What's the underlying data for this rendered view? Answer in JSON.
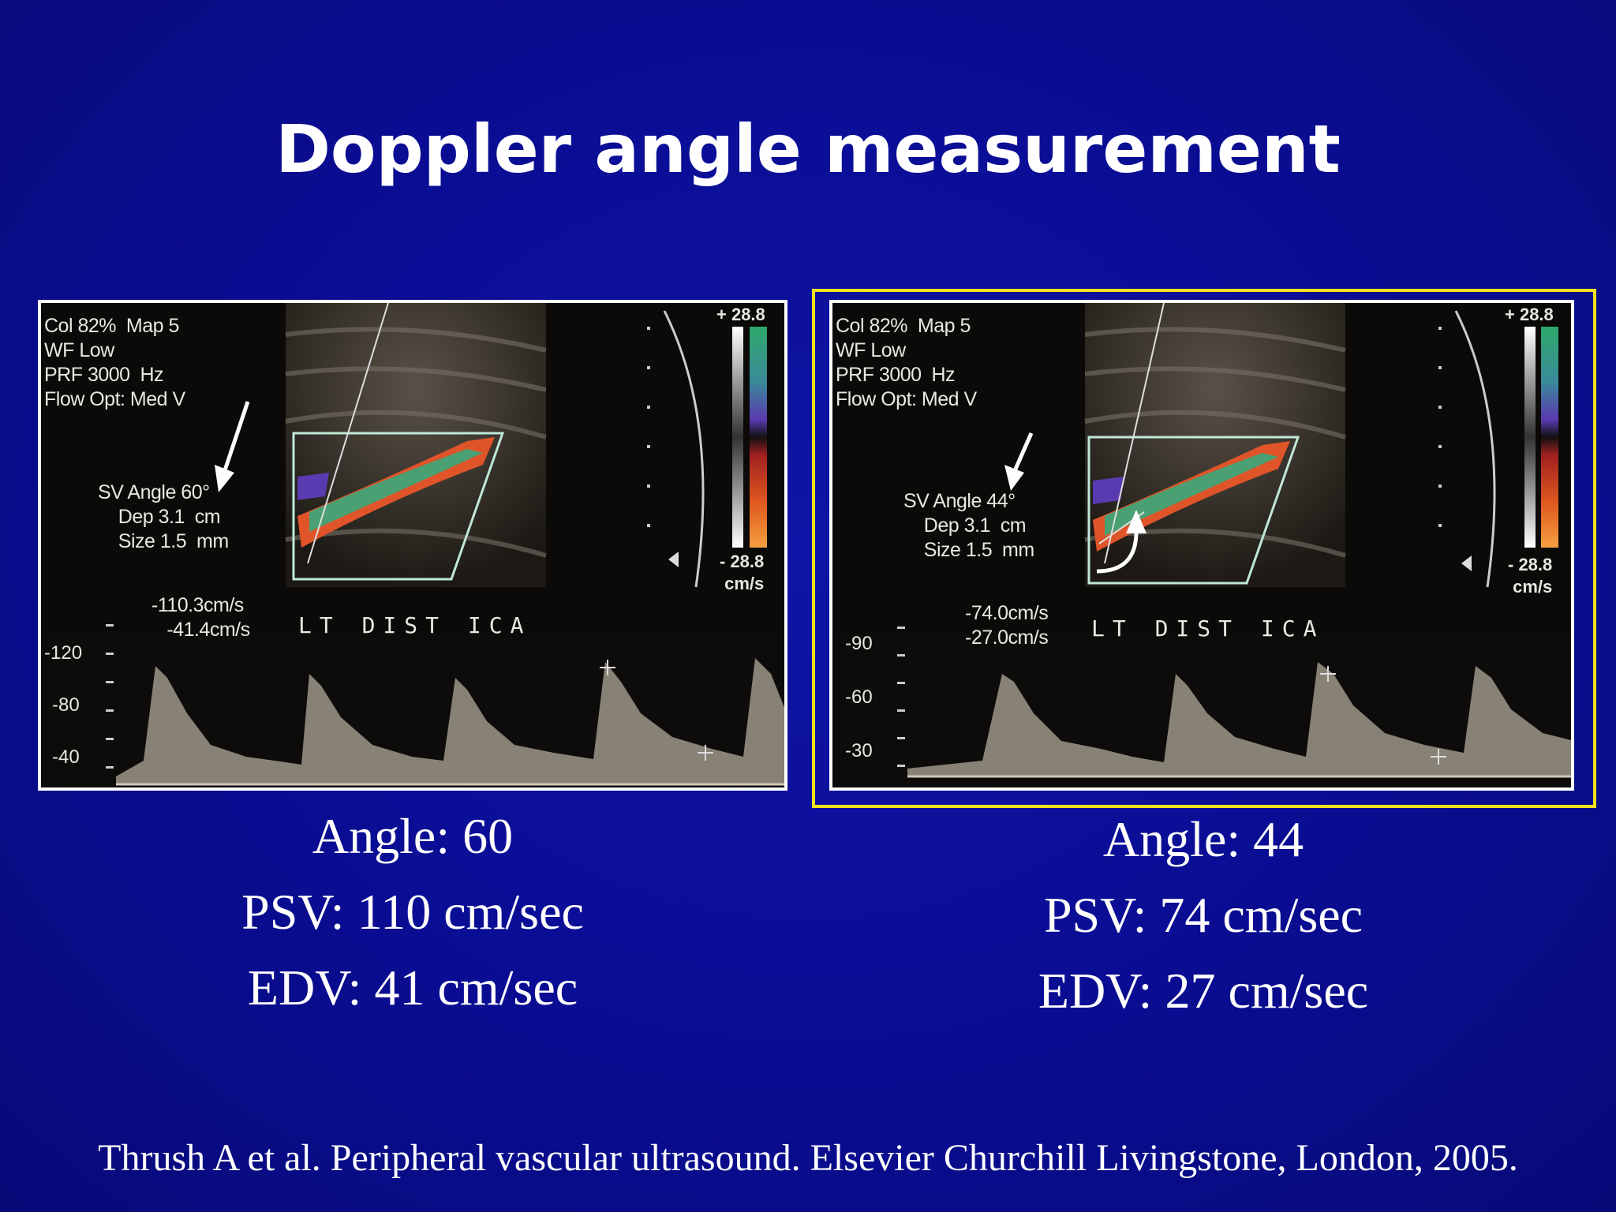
{
  "slide": {
    "title": "Doppler angle measurement",
    "reference": "Thrush A et al. Peripheral vascular ultrasound. Elsevier Churchill Livingstone, London,  2005."
  },
  "left_image": {
    "settings": "Col 82%  Map 5\nWF Low\nPRF 3000  Hz\nFlow Opt: Med V",
    "sv": "SV Angle 60°\n    Dep 3.1  cm\n    Size 1.5  mm",
    "velocities": "-110.3cm/s\n   -41.4cm/s",
    "vessel": "LT DIST ICA",
    "scale_top": "+ 28.8",
    "scale_bottom": "- 28.8\ncm/s",
    "y_ticks": [
      "-120",
      "-80",
      "-40"
    ]
  },
  "right_image": {
    "settings": "Col 82%  Map 5\nWF Low\nPRF 3000  Hz\nFlow Opt: Med V",
    "sv": "SV Angle 44°\n    Dep 3.1  cm\n    Size 1.5  mm",
    "velocities": "-74.0cm/s\n-27.0cm/s",
    "vessel": "LT DIST ICA",
    "scale_top": "+ 28.8",
    "scale_bottom": "- 28.8\ncm/s",
    "y_ticks": [
      "-90",
      "-60",
      "-30"
    ]
  },
  "left_caption": {
    "angle": "Angle: 60",
    "psv": "PSV: 110 cm/sec",
    "edv": "EDV: 41 cm/sec"
  },
  "right_caption": {
    "angle": "Angle: 44",
    "psv": "PSV: 74 cm/sec",
    "edv": "EDV: 27 cm/sec"
  },
  "colors": {
    "background": "#0a0d8f",
    "highlight_frame": "#f2e21a"
  }
}
